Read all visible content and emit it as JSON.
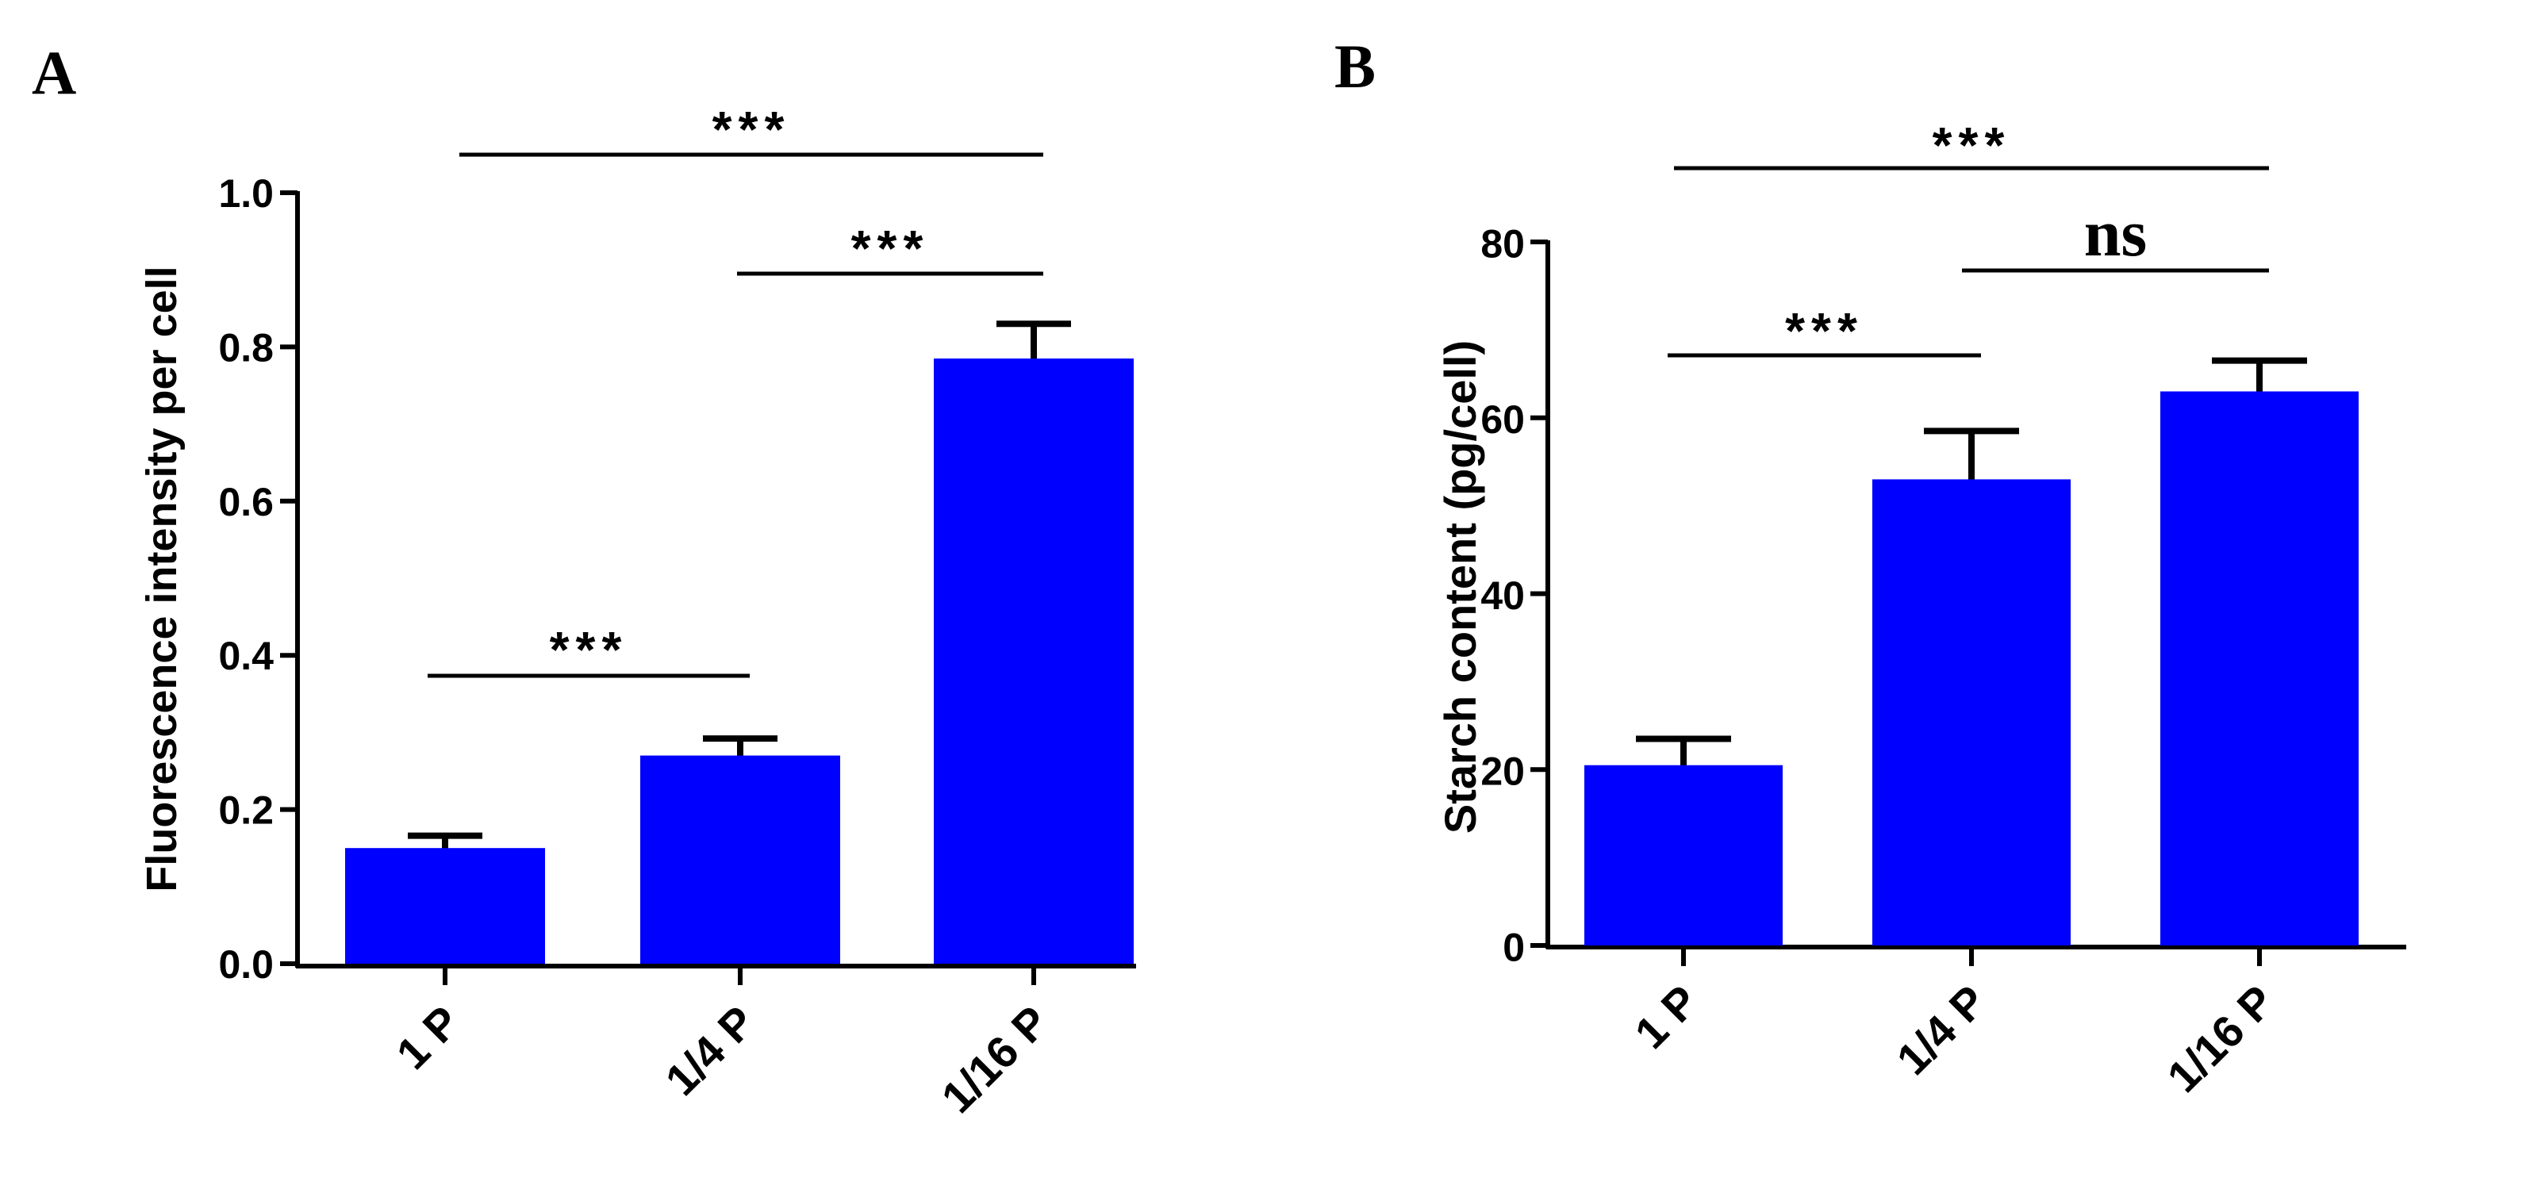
{
  "chart_data": [
    {
      "type": "bar",
      "panel_label": "A",
      "title": "",
      "xlabel": "",
      "ylabel": "Fluorescence intensity per cell",
      "categories": [
        "1 P",
        "1/4 P",
        "1/16 P"
      ],
      "values": [
        0.15,
        0.27,
        0.785
      ],
      "errors": [
        0.016,
        0.022,
        0.045
      ],
      "ylim": [
        0,
        1.0
      ],
      "yticks": [
        0.0,
        0.2,
        0.4,
        0.6,
        0.8,
        1.0
      ],
      "ytick_labels": [
        "0.0",
        "0.2",
        "0.4",
        "0.6",
        "0.8",
        "1.0"
      ],
      "bar_color": "#0000ff",
      "significance": [
        {
          "from": 0,
          "to": 1,
          "label": "***"
        },
        {
          "from": 1,
          "to": 2,
          "label": "***"
        },
        {
          "from": 0,
          "to": 2,
          "label": "***"
        }
      ]
    },
    {
      "type": "bar",
      "panel_label": "B",
      "title": "",
      "xlabel": "",
      "ylabel": "Starch content (pg/cell)",
      "categories": [
        "1 P",
        "1/4 P",
        "1/16 P"
      ],
      "values": [
        20.5,
        53.0,
        63.0
      ],
      "errors": [
        3.0,
        5.5,
        3.5
      ],
      "ylim": [
        0,
        80
      ],
      "yticks": [
        0,
        20,
        40,
        60,
        80
      ],
      "ytick_labels": [
        "0",
        "20",
        "40",
        "60",
        "80"
      ],
      "bar_color": "#0000ff",
      "significance": [
        {
          "from": 0,
          "to": 1,
          "label": "***"
        },
        {
          "from": 1,
          "to": 2,
          "label": "ns"
        },
        {
          "from": 0,
          "to": 2,
          "label": "***"
        }
      ]
    }
  ]
}
